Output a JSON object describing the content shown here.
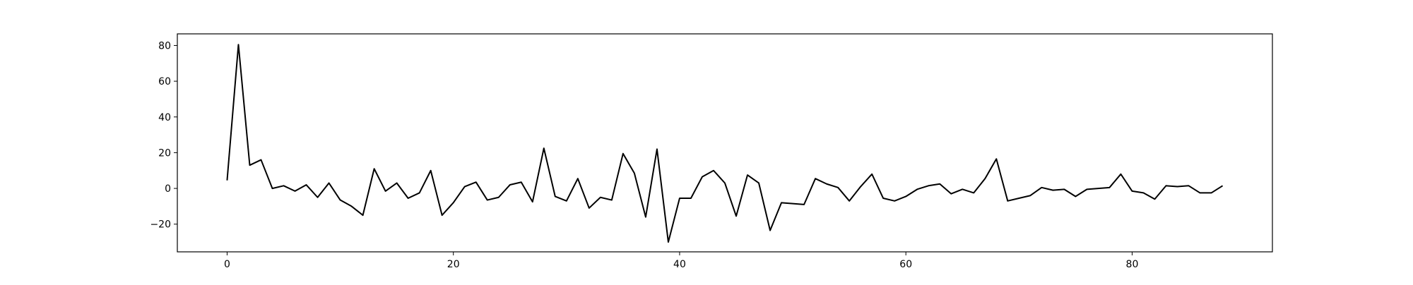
{
  "chart_data": {
    "type": "line",
    "title": "",
    "xlabel": "",
    "ylabel": "",
    "xlim": [
      -4.4,
      92.4
    ],
    "ylim": [
      -35.5,
      86.5
    ],
    "x_ticks": [
      0,
      20,
      40,
      60,
      80
    ],
    "y_ticks": [
      -20,
      0,
      20,
      40,
      60,
      80
    ],
    "grid": false,
    "legend": false,
    "line_color": "#000000",
    "series": [
      {
        "x": [
          0,
          1,
          2,
          3,
          4,
          5,
          6,
          7,
          8,
          9,
          10,
          11,
          12,
          13,
          14,
          15,
          16,
          17,
          18,
          19,
          20,
          21,
          22,
          23,
          24,
          25,
          26,
          27,
          28,
          29,
          30,
          31,
          32,
          33,
          34,
          35,
          36,
          37,
          38,
          39,
          40,
          41,
          42,
          43,
          44,
          45,
          46,
          47,
          48,
          49,
          50,
          51,
          52,
          53,
          54,
          55,
          56,
          57,
          58,
          59,
          60,
          61,
          62,
          63,
          64,
          65,
          66,
          67,
          68,
          69,
          70,
          71,
          72,
          73,
          74,
          75,
          76,
          77,
          78,
          79,
          80,
          81,
          82,
          83,
          84,
          85,
          86,
          87,
          88
        ],
        "y": [
          4.5,
          80.5,
          13,
          16,
          0,
          1.5,
          -1.5,
          2,
          -5,
          3,
          -6.5,
          -10,
          -15,
          11,
          -1.5,
          3,
          -5.5,
          -2.5,
          10,
          -15,
          -8,
          1,
          3.5,
          -6.5,
          -5,
          2,
          3.5,
          -7.5,
          22.5,
          -4.5,
          -7,
          5.5,
          -11,
          -5,
          -6.5,
          19.5,
          8.5,
          -16,
          22,
          -30,
          -5.5,
          -5.5,
          6.5,
          10,
          3,
          -15.5,
          7.5,
          3,
          -23.5,
          -8,
          -8.5,
          -9,
          5.5,
          2.5,
          0.5,
          -7,
          1,
          8,
          -5.5,
          -7,
          -4.5,
          -0.5,
          1.5,
          2.5,
          -3,
          -0.5,
          -2.5,
          5.5,
          16.5,
          -7,
          -5.5,
          -4,
          0.5,
          -1,
          -0.5,
          -4.5,
          -0.5,
          0,
          0.5,
          8,
          -1.5,
          -2.5,
          -6,
          1.5,
          1,
          1.5,
          -2.5,
          -2.5,
          1.5
        ]
      }
    ]
  }
}
